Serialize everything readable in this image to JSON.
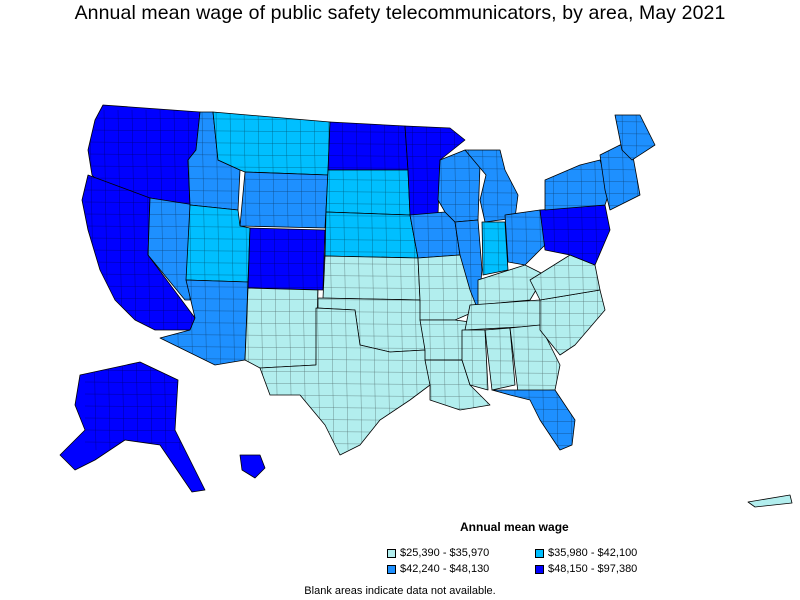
{
  "title": "Annual mean wage of public safety telecommunicators, by area, May 2021",
  "legend": {
    "title": "Annual mean wage",
    "items": [
      {
        "label": "$25,390 - $35,970",
        "color": "#b2eeee"
      },
      {
        "label": "$35,980 - $42,100",
        "color": "#00bfff"
      },
      {
        "label": "$42,240 - $48,130",
        "color": "#1e90ff"
      },
      {
        "label": "$48,150 - $97,380",
        "color": "#0000ff"
      }
    ]
  },
  "note": "Blank areas indicate data not available.",
  "colors": {
    "class1": "#b2eeee",
    "class2": "#00bfff",
    "class3": "#1e90ff",
    "class4": "#0000ff",
    "no_data": "#ffffff",
    "border": "#000000"
  },
  "regions": [
    {
      "name": "Pacific Northwest",
      "class": 4
    },
    {
      "name": "California",
      "class": 4
    },
    {
      "name": "Nevada",
      "class": 3
    },
    {
      "name": "Idaho",
      "class": 3
    },
    {
      "name": "Montana",
      "class": 2
    },
    {
      "name": "Wyoming",
      "class": 3
    },
    {
      "name": "Utah",
      "class": 2
    },
    {
      "name": "Colorado",
      "class": 4
    },
    {
      "name": "Arizona",
      "class": 3
    },
    {
      "name": "New Mexico",
      "class": 1
    },
    {
      "name": "North Dakota",
      "class": 4
    },
    {
      "name": "South Dakota",
      "class": 2
    },
    {
      "name": "Nebraska",
      "class": 2
    },
    {
      "name": "Kansas",
      "class": 1
    },
    {
      "name": "Oklahoma",
      "class": 1
    },
    {
      "name": "Texas",
      "class": 1
    },
    {
      "name": "Minnesota",
      "class": 4
    },
    {
      "name": "Iowa",
      "class": 3
    },
    {
      "name": "Missouri",
      "class": 1
    },
    {
      "name": "Arkansas",
      "class": 1
    },
    {
      "name": "Louisiana",
      "class": 1
    },
    {
      "name": "Wisconsin",
      "class": 3
    },
    {
      "name": "Illinois",
      "class": 3
    },
    {
      "name": "Michigan",
      "class": 3
    },
    {
      "name": "Indiana",
      "class": 2
    },
    {
      "name": "Ohio",
      "class": 3
    },
    {
      "name": "Kentucky",
      "class": 1
    },
    {
      "name": "Tennessee",
      "class": 1
    },
    {
      "name": "Mississippi",
      "class": 1
    },
    {
      "name": "Alabama",
      "class": 1
    },
    {
      "name": "Georgia",
      "class": 1
    },
    {
      "name": "Florida",
      "class": 3
    },
    {
      "name": "Carolinas",
      "class": 1
    },
    {
      "name": "Virginia",
      "class": 1
    },
    {
      "name": "Mid-Atlantic",
      "class": 4
    },
    {
      "name": "New York",
      "class": 3
    },
    {
      "name": "New England",
      "class": 3
    },
    {
      "name": "Maine",
      "class": 3
    },
    {
      "name": "Alaska",
      "class": 4
    },
    {
      "name": "Hawaii",
      "class": 4
    },
    {
      "name": "Puerto Rico",
      "class": 1
    }
  ]
}
